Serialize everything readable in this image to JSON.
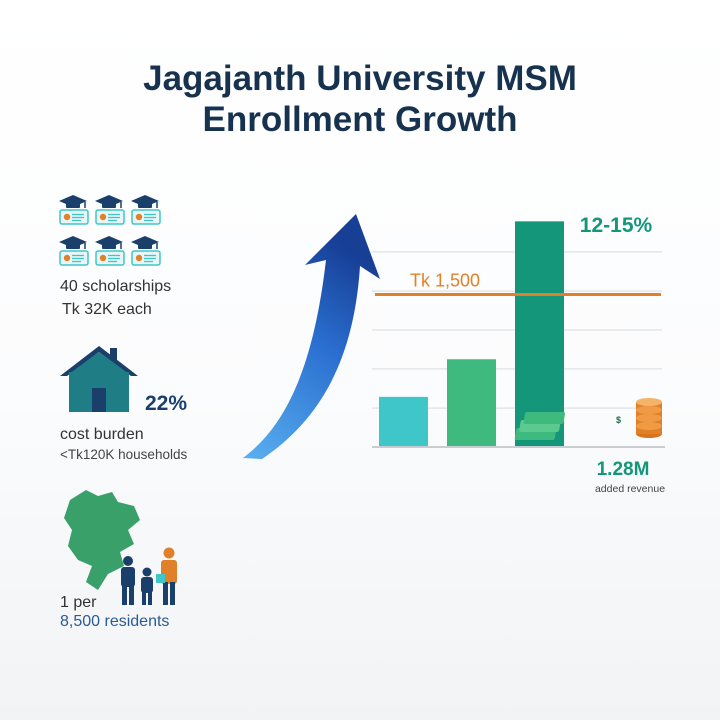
{
  "title": {
    "line1": "Jagajanth University MSM",
    "line2": "Enrollment Growth"
  },
  "stats": {
    "scholarships": {
      "icon": "graduation-cap-certificate-icon",
      "line1": "40 scholarships",
      "line2": "Tk 32K each"
    },
    "cost_burden": {
      "icon": "house-icon",
      "value": "22%",
      "line1": "cost burden",
      "line2": "<Tk120K households"
    },
    "residents": {
      "icon": "map-family-icon",
      "line1": "1 per",
      "line2": "8,500 residents"
    }
  },
  "colors": {
    "title": "#16324f",
    "teal_light": "#3fc6c8",
    "green": "#3fba7f",
    "green_dark": "#13967a",
    "orange_line": "#e0812a",
    "arrow": "#1f4fa8",
    "map_green": "#3aa06a"
  },
  "chart_data": {
    "type": "bar",
    "categories": [
      "",
      "",
      ""
    ],
    "values": [
      12,
      21,
      54
    ],
    "colors": [
      "#3fc6c8",
      "#3fba7f",
      "#13967a"
    ],
    "ylim": [
      0,
      56
    ],
    "grid": true,
    "reference_line": {
      "label": "Tk 1,500",
      "value": 36.5
    },
    "annotations": {
      "top": "12-15%",
      "revenue_value": "1.28M",
      "revenue_label": "added revenue",
      "revenue_icon": "money-coins-icon",
      "growth_icon": "upward-arrow-icon"
    }
  }
}
